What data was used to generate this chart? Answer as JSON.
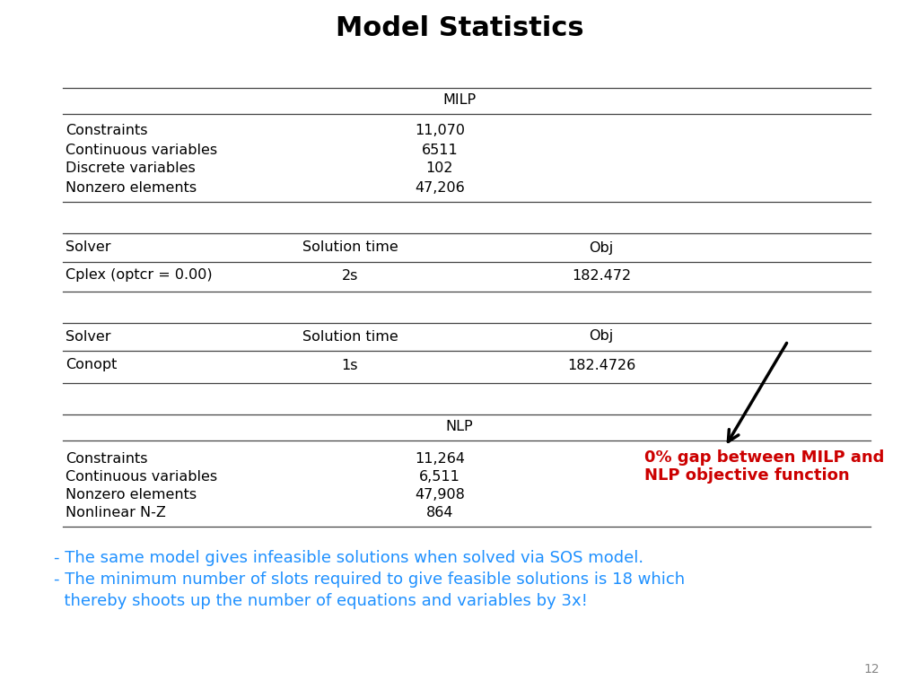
{
  "title": "Model Statistics",
  "title_fontsize": 22,
  "title_fontweight": "bold",
  "bg_color": "#ffffff",
  "milp_header": "MILP",
  "milp_rows": [
    [
      "Constraints",
      "11,070"
    ],
    [
      "Continuous variables",
      "6511"
    ],
    [
      "Discrete variables",
      "102"
    ],
    [
      "Nonzero elements",
      "47,206"
    ]
  ],
  "solver1_headers": [
    "Solver",
    "Solution time",
    "Obj"
  ],
  "solver1_rows": [
    [
      "Cplex (optcr = 0.00)",
      "2s",
      "182.472"
    ]
  ],
  "solver2_headers": [
    "Solver",
    "Solution time",
    "Obj"
  ],
  "solver2_rows": [
    [
      "Conopt",
      "1s",
      "182.4726"
    ]
  ],
  "nlp_header": "NLP",
  "nlp_rows": [
    [
      "Constraints",
      "11,264"
    ],
    [
      "Continuous variables",
      "6,511"
    ],
    [
      "Nonzero elements",
      "47,908"
    ],
    [
      "Nonlinear N-Z",
      "864"
    ]
  ],
  "annotation_text": "0% gap between MILP and\nNLP objective function",
  "annotation_color": "#cc0000",
  "note_line1": "- The same model gives infeasible solutions when solved via SOS model.",
  "note_line2": "- The minimum number of slots required to give feasible solutions is 18 which",
  "note_line3": "  thereby shoots up the number of equations and variables by 3x!",
  "note_color": "#1e90ff",
  "page_number": "12",
  "col_solver": 0.075,
  "col_soltime": 0.38,
  "col_obj": 0.665,
  "col_value": 0.465
}
